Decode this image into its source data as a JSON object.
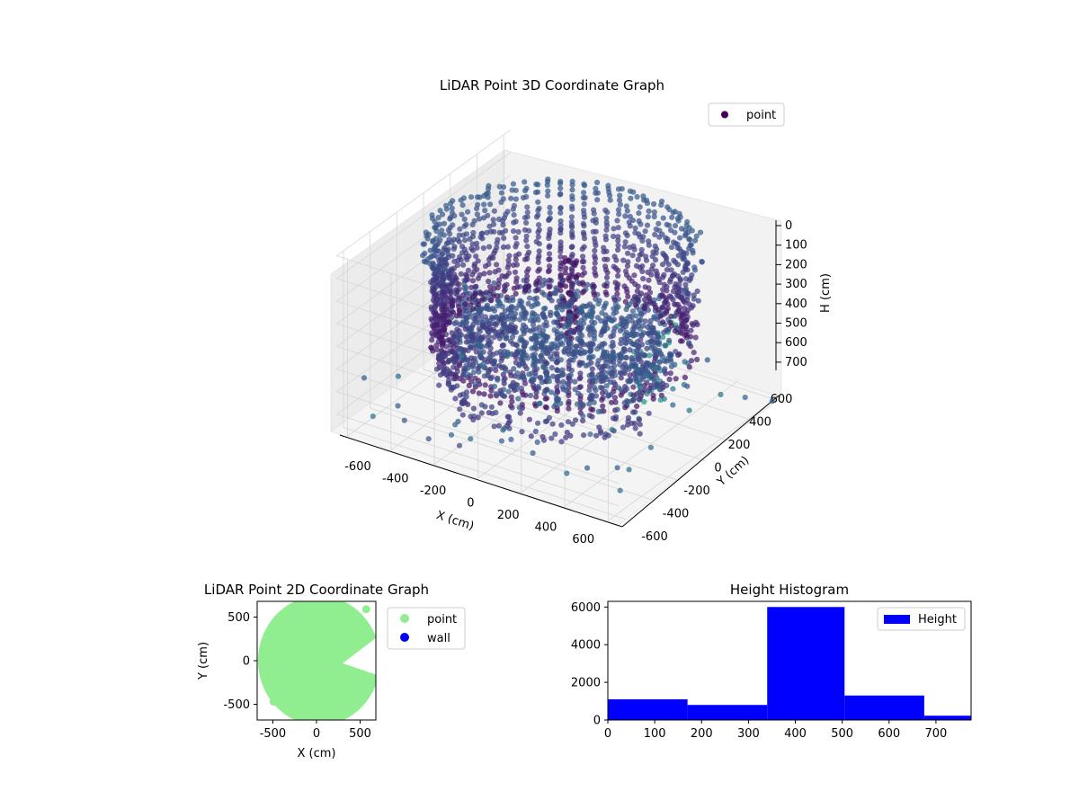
{
  "chart_data": [
    {
      "type": "scatter",
      "title": "LiDAR Point 3D Coordinate Graph",
      "xlabel": "X (cm)",
      "ylabel": "Y (cm)",
      "zlabel": "H (cm)",
      "x_ticks": [
        -600,
        -400,
        -200,
        0,
        200,
        400,
        600
      ],
      "y_ticks": [
        -600,
        -400,
        -200,
        0,
        200,
        400,
        600
      ],
      "z_ticks": [
        0,
        100,
        200,
        300,
        400,
        500,
        600,
        700
      ],
      "xlim": [
        -650,
        650
      ],
      "ylim": [
        -650,
        650
      ],
      "zlim": [
        0,
        780
      ],
      "z_inverted": true,
      "legend": {
        "entries": [
          "point"
        ],
        "placement": "upper-right",
        "color": "#440154"
      },
      "colormap": "viridis",
      "series": [
        {
          "name": "point",
          "description": "ring-shaped point cloud, roughly circular of radius 450–650 cm, heights 0–780 cm"
        }
      ]
    },
    {
      "type": "scatter",
      "title": "LiDAR Point 2D Coordinate Graph",
      "xlabel": "X (cm)",
      "ylabel": "Y (cm)",
      "x_ticks": [
        -500,
        0,
        500
      ],
      "y_ticks": [
        -500,
        0,
        500
      ],
      "xlim": [
        -680,
        680
      ],
      "ylim": [
        -680,
        680
      ],
      "legend": {
        "entries": [
          "point",
          "wall"
        ],
        "placement": "outside-right"
      },
      "series": [
        {
          "name": "point",
          "color": "#90ee90"
        },
        {
          "name": "wall",
          "color": "#0000ff"
        }
      ]
    },
    {
      "type": "bar",
      "title": "Height Histogram",
      "legend": {
        "entries": [
          "Height"
        ],
        "placement": "upper-right"
      },
      "color": "#0000ff",
      "x_ticks": [
        0,
        100,
        200,
        300,
        400,
        500,
        600,
        700
      ],
      "y_ticks": [
        0,
        2000,
        4000,
        6000
      ],
      "xlim": [
        0,
        775
      ],
      "ylim": [
        0,
        6300
      ],
      "bins": [
        {
          "x0": 0,
          "x1": 170,
          "count": 1100
        },
        {
          "x0": 170,
          "x1": 340,
          "count": 800
        },
        {
          "x0": 340,
          "x1": 505,
          "count": 6000
        },
        {
          "x0": 505,
          "x1": 675,
          "count": 1300
        },
        {
          "x0": 675,
          "x1": 775,
          "count": 230
        }
      ],
      "series": [
        {
          "name": "Height"
        }
      ]
    }
  ]
}
